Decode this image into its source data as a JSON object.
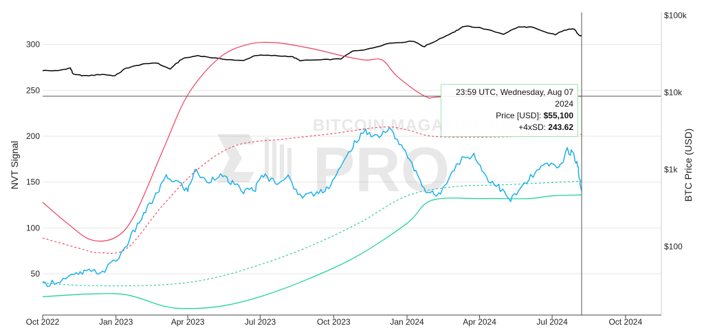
{
  "chart_data": {
    "type": "line",
    "ylabel_left": "NVT Signal",
    "ylabel_right": "BTC Price (USD)",
    "x_ticks": [
      "Oct 2022",
      "Jan 2023",
      "Apr 2023",
      "Jul 2023",
      "Oct 2023",
      "Jan 2024",
      "Apr 2024",
      "Jul 2024",
      "Oct 2024"
    ],
    "x_range": [
      "2022-10-01",
      "2024-11-15"
    ],
    "y_left_ticks": [
      "50",
      "100",
      "150",
      "200",
      "250",
      "300"
    ],
    "y_left_range": [
      5,
      335
    ],
    "y_right_ticks": [
      "$100",
      "$1k",
      "$10k",
      "$100k"
    ],
    "y_right_scale": "log",
    "y_right_range": [
      13,
      110000
    ],
    "grid": true,
    "watermark": "BITCOIN MAGAZINE PRO",
    "colors": {
      "btc_price": "#000000",
      "nvt_signal": "#1ab0e8",
      "upper_band": "#ef3e5c",
      "upper_mid": "#ef3e5c",
      "lower_mid": "#22c9a0",
      "lower_band": "#22d3a0",
      "crosshair": "#555555",
      "tooltip_border": "#9be3b3"
    },
    "tooltip": {
      "timestamp": "23:59 UTC, Wednesday, Aug 07 2024",
      "price_label": "Price [USD]:",
      "price_value": "$55,100",
      "band_label": "+4xSD:",
      "band_value": "243.62"
    },
    "crosshair": {
      "date": "2024-08-07",
      "nvt": 243.62
    },
    "series": [
      {
        "key": "btc_price",
        "axis": "right",
        "points": [
          [
            "2022-10-01",
            19400
          ],
          [
            "2022-10-20",
            19200
          ],
          [
            "2022-11-05",
            20900
          ],
          [
            "2022-11-09",
            17200
          ],
          [
            "2022-11-25",
            16500
          ],
          [
            "2022-12-15",
            17300
          ],
          [
            "2022-12-31",
            16550
          ],
          [
            "2023-01-14",
            20800
          ],
          [
            "2023-02-01",
            23100
          ],
          [
            "2023-02-20",
            24500
          ],
          [
            "2023-03-10",
            20200
          ],
          [
            "2023-03-25",
            27500
          ],
          [
            "2023-04-14",
            30300
          ],
          [
            "2023-05-10",
            27600
          ],
          [
            "2023-06-10",
            25900
          ],
          [
            "2023-06-25",
            30500
          ],
          [
            "2023-07-15",
            30300
          ],
          [
            "2023-08-10",
            29500
          ],
          [
            "2023-08-20",
            26100
          ],
          [
            "2023-09-15",
            26600
          ],
          [
            "2023-10-10",
            27400
          ],
          [
            "2023-10-25",
            34500
          ],
          [
            "2023-11-15",
            37000
          ],
          [
            "2023-12-10",
            43800
          ],
          [
            "2024-01-10",
            46500
          ],
          [
            "2024-01-23",
            39500
          ],
          [
            "2024-02-15",
            52000
          ],
          [
            "2024-03-01",
            62000
          ],
          [
            "2024-03-14",
            73000
          ],
          [
            "2024-04-01",
            69700
          ],
          [
            "2024-05-01",
            57500
          ],
          [
            "2024-05-20",
            71000
          ],
          [
            "2024-06-05",
            71000
          ],
          [
            "2024-06-24",
            60300
          ],
          [
            "2024-07-05",
            56700
          ],
          [
            "2024-07-22",
            67500
          ],
          [
            "2024-07-29",
            66800
          ],
          [
            "2024-08-05",
            54100
          ],
          [
            "2024-08-07",
            55100
          ]
        ]
      },
      {
        "key": "upper_band",
        "axis": "left",
        "points": [
          [
            "2022-10-01",
            128
          ],
          [
            "2022-11-01",
            105
          ],
          [
            "2022-12-01",
            87
          ],
          [
            "2023-01-01",
            90
          ],
          [
            "2023-01-25",
            115
          ],
          [
            "2023-03-01",
            185
          ],
          [
            "2023-04-01",
            245
          ],
          [
            "2023-05-10",
            285
          ],
          [
            "2023-06-15",
            300
          ],
          [
            "2023-07-20",
            302
          ],
          [
            "2023-09-01",
            296
          ],
          [
            "2023-10-15",
            287
          ],
          [
            "2023-11-10",
            283
          ],
          [
            "2023-12-01",
            283
          ],
          [
            "2023-12-20",
            265
          ],
          [
            "2024-01-25",
            243
          ],
          [
            "2024-02-20",
            243
          ],
          [
            "2024-08-07",
            243.62
          ]
        ]
      },
      {
        "key": "upper_mid",
        "axis": "left",
        "points": [
          [
            "2022-10-01",
            89
          ],
          [
            "2022-11-15",
            78
          ],
          [
            "2022-12-10",
            73
          ],
          [
            "2023-01-15",
            78
          ],
          [
            "2023-03-01",
            125
          ],
          [
            "2023-04-15",
            165
          ],
          [
            "2023-06-01",
            190
          ],
          [
            "2023-08-01",
            197
          ],
          [
            "2023-10-01",
            203
          ],
          [
            "2023-12-01",
            210
          ],
          [
            "2024-01-01",
            207
          ],
          [
            "2024-02-01",
            200
          ],
          [
            "2024-04-01",
            199
          ],
          [
            "2024-06-01",
            200
          ],
          [
            "2024-08-07",
            202
          ]
        ]
      },
      {
        "key": "lower_mid",
        "axis": "left",
        "points": [
          [
            "2022-10-01",
            40
          ],
          [
            "2022-12-01",
            37
          ],
          [
            "2023-03-01",
            38
          ],
          [
            "2023-05-01",
            45
          ],
          [
            "2023-07-01",
            60
          ],
          [
            "2023-09-01",
            80
          ],
          [
            "2023-11-01",
            105
          ],
          [
            "2024-01-01",
            135
          ],
          [
            "2024-03-01",
            145
          ],
          [
            "2024-05-01",
            147
          ],
          [
            "2024-08-07",
            151
          ]
        ]
      },
      {
        "key": "lower_band",
        "axis": "left",
        "points": [
          [
            "2022-10-01",
            25
          ],
          [
            "2022-12-01",
            28
          ],
          [
            "2023-01-15",
            27
          ],
          [
            "2023-03-01",
            15
          ],
          [
            "2023-04-01",
            12
          ],
          [
            "2023-05-15",
            15
          ],
          [
            "2023-07-01",
            25
          ],
          [
            "2023-09-01",
            45
          ],
          [
            "2023-11-01",
            70
          ],
          [
            "2024-01-01",
            105
          ],
          [
            "2024-02-01",
            130
          ],
          [
            "2024-04-01",
            132
          ],
          [
            "2024-06-01",
            132
          ],
          [
            "2024-07-01",
            135
          ],
          [
            "2024-08-07",
            136
          ]
        ]
      },
      {
        "key": "nvt_signal",
        "axis": "left",
        "points": [
          [
            "2022-10-01",
            38
          ],
          [
            "2022-10-20",
            42
          ],
          [
            "2022-11-10",
            48
          ],
          [
            "2022-11-25",
            52
          ],
          [
            "2022-12-15",
            52
          ],
          [
            "2023-01-05",
            68
          ],
          [
            "2023-01-20",
            90
          ],
          [
            "2023-02-05",
            115
          ],
          [
            "2023-02-20",
            135
          ],
          [
            "2023-03-05",
            155
          ],
          [
            "2023-03-20",
            150
          ],
          [
            "2023-04-01",
            140
          ],
          [
            "2023-04-10",
            163
          ],
          [
            "2023-04-25",
            150
          ],
          [
            "2023-05-10",
            158
          ],
          [
            "2023-05-25",
            150
          ],
          [
            "2023-06-10",
            140
          ],
          [
            "2023-06-25",
            143
          ],
          [
            "2023-07-05",
            158
          ],
          [
            "2023-07-20",
            150
          ],
          [
            "2023-08-05",
            155
          ],
          [
            "2023-08-20",
            135
          ],
          [
            "2023-09-10",
            138
          ],
          [
            "2023-09-25",
            145
          ],
          [
            "2023-10-10",
            165
          ],
          [
            "2023-10-25",
            190
          ],
          [
            "2023-11-10",
            205
          ],
          [
            "2023-11-25",
            200
          ],
          [
            "2023-12-10",
            208
          ],
          [
            "2023-12-25",
            190
          ],
          [
            "2024-01-10",
            165
          ],
          [
            "2024-01-25",
            140
          ],
          [
            "2024-02-10",
            135
          ],
          [
            "2024-02-25",
            160
          ],
          [
            "2024-03-10",
            175
          ],
          [
            "2024-03-25",
            180
          ],
          [
            "2024-04-10",
            155
          ],
          [
            "2024-04-25",
            145
          ],
          [
            "2024-05-10",
            130
          ],
          [
            "2024-05-25",
            145
          ],
          [
            "2024-06-10",
            160
          ],
          [
            "2024-06-25",
            170
          ],
          [
            "2024-07-10",
            165
          ],
          [
            "2024-07-20",
            185
          ],
          [
            "2024-07-28",
            180
          ],
          [
            "2024-08-03",
            165
          ],
          [
            "2024-08-07",
            140
          ]
        ]
      }
    ]
  }
}
